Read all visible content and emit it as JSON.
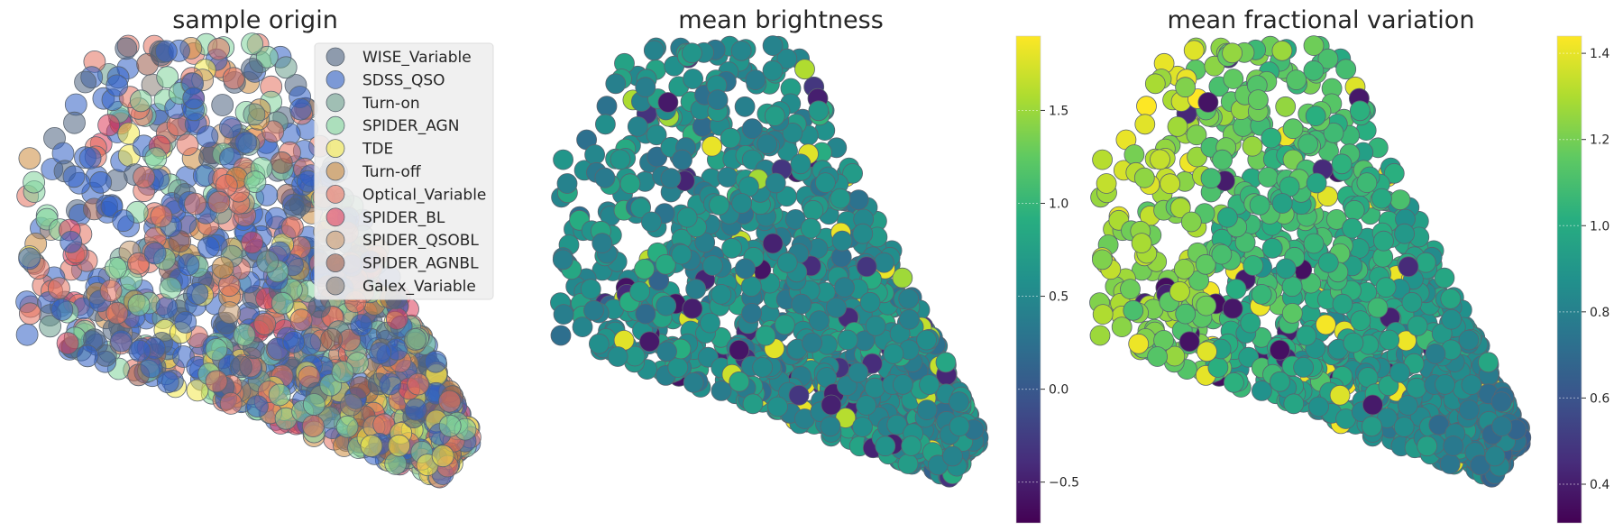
{
  "chart_data": [
    {
      "type": "scatter",
      "title": "sample origin",
      "legend_position": "top-right",
      "grid": false,
      "axes_visible": false,
      "series": [
        {
          "name": "WISE_Variable",
          "color": "#4c6380"
        },
        {
          "name": "SDSS_QSO",
          "color": "#2f5fc4"
        },
        {
          "name": "Turn-on",
          "color": "#6a9e8c"
        },
        {
          "name": "SPIDER_AGN",
          "color": "#7fd49a"
        },
        {
          "name": "TDE",
          "color": "#f2e84a"
        },
        {
          "name": "Turn-off",
          "color": "#cc8b3c"
        },
        {
          "name": "Optical_Variable",
          "color": "#e4715f"
        },
        {
          "name": "SPIDER_BL",
          "color": "#dd3c5a"
        },
        {
          "name": "SPIDER_QSOBL",
          "color": "#c99a6e"
        },
        {
          "name": "SPIDER_AGNBL",
          "color": "#9a5a48"
        },
        {
          "name": "Galex_Variable",
          "color": "#8a7f76"
        }
      ]
    },
    {
      "type": "scatter",
      "title": "mean brightness",
      "grid": false,
      "axes_visible": false,
      "colormap": "viridis",
      "colorbar": {
        "vmin": -0.72,
        "vmax": 1.9,
        "ticks": [
          -0.5,
          0.0,
          0.5,
          1.0,
          1.5
        ],
        "tick_labels": [
          "−0.5",
          "0.0",
          "0.5",
          "1.0",
          "1.5"
        ]
      }
    },
    {
      "type": "scatter",
      "title": "mean fractional variation",
      "grid": false,
      "axes_visible": false,
      "colormap": "viridis",
      "colorbar": {
        "vmin": 0.31,
        "vmax": 1.44,
        "ticks": [
          0.4,
          0.6,
          0.8,
          1.0,
          1.2,
          1.4
        ],
        "tick_labels": [
          "0.4",
          "0.6",
          "0.8",
          "1.0",
          "1.2",
          "1.4"
        ]
      }
    }
  ]
}
